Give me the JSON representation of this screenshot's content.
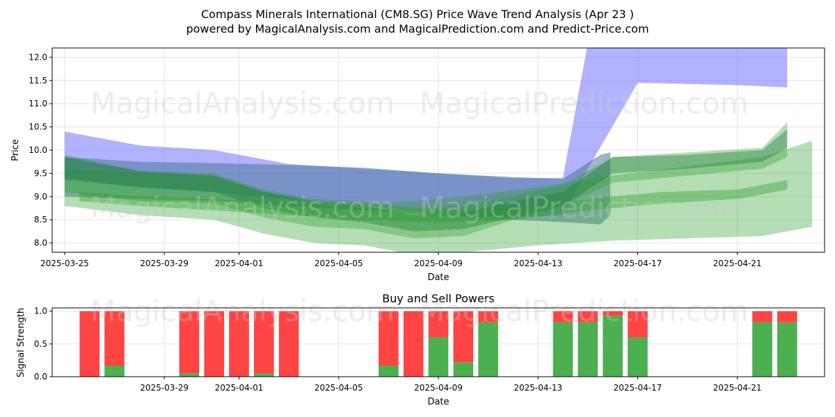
{
  "header": {
    "title_line1": "Compass Minerals International  (CM8.SG) Price Wave Trend Analysis (Apr 23 )",
    "title_line2": "powered by MagicalAnalysis.com and MagicalPrediction.com and Predict-Price.com"
  },
  "watermarks": [
    "MagicalAnalysis.com",
    "MagicalPrediction.com"
  ],
  "colors": {
    "blue_band": "#6666ff",
    "steel_band": "#4a7a9a",
    "green_band": "#2ca02c",
    "dark_green_band": "#1b7a3a",
    "buy": "#4caf50",
    "sell": "#ff4444"
  },
  "chart_data": [
    {
      "type": "area",
      "title": "",
      "xlabel": "Date",
      "ylabel": "Price",
      "xlim": [
        "2025-03-24T12:00",
        "2025-04-24T12:00"
      ],
      "ylim": [
        7.8,
        12.2
      ],
      "grid": true,
      "x_ticks": [
        "2025-03-25",
        "2025-03-29",
        "2025-04-01",
        "2025-04-05",
        "2025-04-09",
        "2025-04-13",
        "2025-04-17",
        "2025-04-21"
      ],
      "y_ticks": [
        "8.0",
        "8.5",
        "9.0",
        "9.5",
        "10.0",
        "10.5",
        "11.0",
        "11.5",
        "12.0"
      ],
      "bands": [
        {
          "color": "blue",
          "x": [
            "2025-03-25",
            "2025-03-28",
            "2025-03-31",
            "2025-04-03",
            "2025-04-06",
            "2025-04-09",
            "2025-04-12",
            "2025-04-14",
            "2025-04-15",
            "2025-04-17",
            "2025-04-21",
            "2025-04-23"
          ],
          "lower": [
            9.35,
            9.2,
            9.1,
            8.95,
            8.8,
            8.65,
            8.55,
            8.6,
            9.6,
            11.45,
            11.4,
            11.35
          ],
          "upper": [
            10.4,
            10.1,
            10.0,
            9.7,
            9.6,
            9.5,
            9.4,
            9.4,
            12.3,
            12.3,
            12.3,
            12.3
          ],
          "opacity": 0.5
        },
        {
          "color": "steel",
          "x": [
            "2025-03-25",
            "2025-03-28",
            "2025-03-31",
            "2025-04-03",
            "2025-04-06",
            "2025-04-09",
            "2025-04-12",
            "2025-04-14",
            "2025-04-15.5",
            "2025-04-15.9"
          ],
          "lower": [
            9.0,
            8.95,
            8.9,
            8.8,
            8.7,
            8.6,
            8.5,
            8.45,
            8.4,
            8.6
          ],
          "upper": [
            9.85,
            9.75,
            9.72,
            9.68,
            9.62,
            9.5,
            9.42,
            9.38,
            9.9,
            9.95
          ],
          "opacity": 0.55
        },
        {
          "color": "green",
          "x": [
            "2025-03-25",
            "2025-03-28",
            "2025-03-31",
            "2025-04-02",
            "2025-04-04",
            "2025-04-06",
            "2025-04-08",
            "2025-04-10",
            "2025-04-13",
            "2025-04-16",
            "2025-04-19",
            "2025-04-22",
            "2025-04-24"
          ],
          "lower": [
            8.8,
            8.6,
            8.5,
            8.2,
            8.0,
            7.95,
            7.75,
            7.8,
            7.95,
            8.05,
            8.1,
            8.15,
            8.35
          ],
          "upper": [
            9.6,
            9.5,
            9.45,
            9.1,
            8.9,
            8.85,
            8.9,
            9.0,
            9.2,
            9.45,
            9.65,
            9.85,
            10.2
          ],
          "opacity": 0.35
        },
        {
          "color": "green",
          "x": [
            "2025-03-25",
            "2025-03-28",
            "2025-03-31",
            "2025-04-02",
            "2025-04-04",
            "2025-04-06",
            "2025-04-08",
            "2025-04-10",
            "2025-04-12",
            "2025-04-14",
            "2025-04-16",
            "2025-04-19",
            "2025-04-22",
            "2025-04-23"
          ],
          "lower": [
            9.1,
            8.9,
            8.85,
            8.55,
            8.35,
            8.3,
            8.1,
            8.15,
            8.5,
            8.8,
            9.3,
            9.45,
            9.6,
            9.85
          ],
          "upper": [
            9.9,
            9.55,
            9.5,
            9.15,
            8.95,
            8.9,
            8.75,
            8.8,
            9.0,
            9.25,
            9.85,
            9.95,
            10.05,
            10.6
          ],
          "opacity": 0.35
        },
        {
          "color": "dark_green",
          "x": [
            "2025-03-25",
            "2025-03-28",
            "2025-03-31",
            "2025-04-02",
            "2025-04-04",
            "2025-04-06",
            "2025-04-08",
            "2025-04-10",
            "2025-04-12",
            "2025-04-14",
            "2025-04-16",
            "2025-04-19",
            "2025-04-22",
            "2025-04-23"
          ],
          "lower": [
            9.4,
            9.2,
            9.1,
            8.75,
            8.55,
            8.45,
            8.25,
            8.3,
            8.55,
            8.8,
            9.5,
            9.6,
            9.75,
            10.05
          ],
          "upper": [
            9.85,
            9.55,
            9.45,
            9.1,
            8.9,
            8.8,
            8.6,
            8.65,
            8.9,
            9.1,
            9.85,
            9.9,
            10.0,
            10.45
          ],
          "opacity": 0.4
        },
        {
          "color": "green",
          "x": [
            "2025-03-25.6",
            "2025-03-28",
            "2025-03-31",
            "2025-04-03",
            "2025-04-06",
            "2025-04-09",
            "2025-04-12",
            "2025-04-15",
            "2025-04-18",
            "2025-04-21",
            "2025-04-23"
          ],
          "lower": [
            8.9,
            8.8,
            8.7,
            8.6,
            8.5,
            8.45,
            8.5,
            8.7,
            8.85,
            8.95,
            9.15
          ],
          "upper": [
            9.1,
            9.0,
            8.95,
            8.85,
            8.75,
            8.7,
            8.75,
            8.95,
            9.1,
            9.15,
            9.35
          ],
          "opacity": 0.4
        }
      ]
    },
    {
      "type": "bar",
      "title": "Buy and Sell Powers",
      "xlabel": "Date",
      "ylabel": "Signal Strength",
      "xlim": [
        "2025-03-24T12:00",
        "2025-04-24T12:00"
      ],
      "ylim": [
        0,
        1.05
      ],
      "grid": true,
      "x_ticks": [
        "2025-03-29",
        "2025-04-01",
        "2025-04-05",
        "2025-04-09",
        "2025-04-13",
        "2025-04-17",
        "2025-04-21"
      ],
      "y_ticks": [
        "0.0",
        "0.5",
        "1.0"
      ],
      "x": [
        "2025-03-26",
        "2025-03-27",
        "2025-03-30",
        "2025-03-31",
        "2025-04-01",
        "2025-04-02",
        "2025-04-03",
        "2025-04-07",
        "2025-04-08",
        "2025-04-09",
        "2025-04-10",
        "2025-04-11",
        "2025-04-14",
        "2025-04-15",
        "2025-04-16",
        "2025-04-17",
        "2025-04-22",
        "2025-04-23"
      ],
      "series": [
        {
          "name": "",
          "values": [
            0.0,
            0.17,
            0.05,
            0.0,
            0.0,
            0.05,
            0.0,
            0.17,
            0.0,
            0.6,
            0.22,
            0.83,
            0.83,
            0.83,
            0.93,
            0.6,
            0.83,
            0.83
          ]
        },
        {
          "name": "",
          "values": [
            1.0,
            0.83,
            0.95,
            1.0,
            1.0,
            0.95,
            1.0,
            0.83,
            1.0,
            0.4,
            0.78,
            0.17,
            0.17,
            0.17,
            0.07,
            0.4,
            0.17,
            0.17
          ]
        }
      ]
    }
  ]
}
